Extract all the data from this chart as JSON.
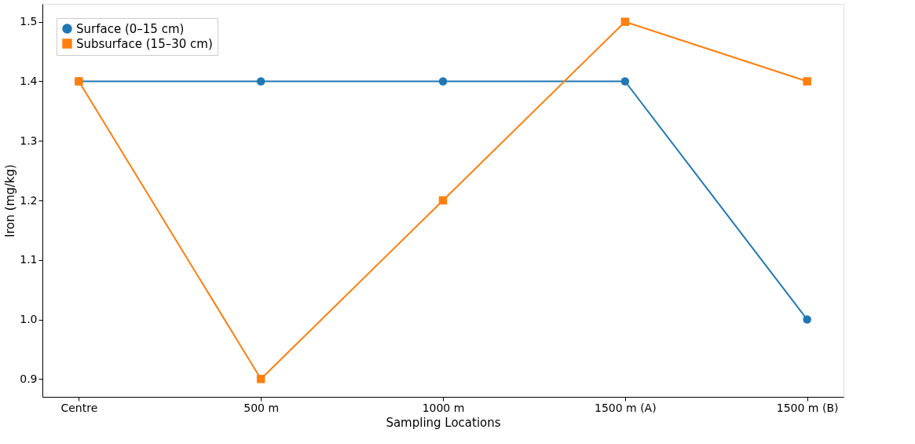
{
  "chart_data": {
    "type": "line",
    "xlabel": "Sampling Locations",
    "ylabel": "Iron (mg/kg)",
    "categories": [
      "Centre",
      "500 m",
      "1000 m",
      "1500 m (A)",
      "1500 m (B)"
    ],
    "series": [
      {
        "name": "Surface (0–15 cm)",
        "color": "#1f77b4",
        "marker": "circle",
        "values": [
          1.4,
          1.4,
          1.4,
          1.4,
          1.0
        ]
      },
      {
        "name": "Subsurface (15–30 cm)",
        "color": "#ff7f0e",
        "marker": "square",
        "values": [
          1.4,
          0.9,
          1.2,
          1.5,
          1.4
        ]
      }
    ],
    "ylim": [
      0.87,
      1.53
    ],
    "yticks": [
      0.9,
      {
        "value": 1,
        "label": "1.0"
      },
      1.1,
      1.2,
      1.3,
      1.4,
      1.5
    ],
    "grid": false,
    "legend": "top left"
  }
}
